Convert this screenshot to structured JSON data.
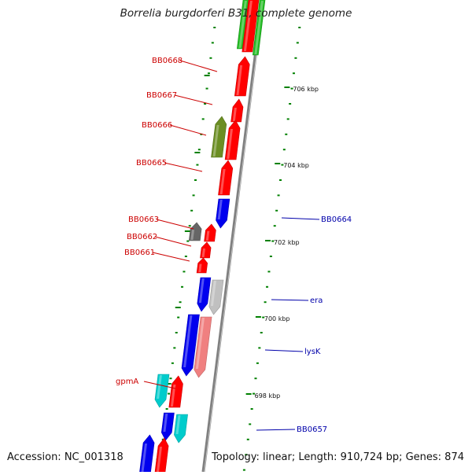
{
  "title": "Borrelia burgdorferi B31, complete genome",
  "footer": {
    "accession": "Accession: NC_001318",
    "topology": "Topology: linear; Length: 910,724 bp; Genes: 874"
  },
  "colors": {
    "backbone": "#808080",
    "ticks": "#008000",
    "forward_label": "#cc0000",
    "reverse_label": "#0000aa",
    "red": "#ff0000",
    "blue": "#0000ee",
    "green": "#22bb22",
    "olive": "#6b8e23",
    "gray": "#666666",
    "light_gray": "#c0c0c0",
    "cyan": "#00cccc",
    "pink": "#f08080"
  },
  "scale_labels": [
    "706 kbp",
    "704 kbp",
    "702 kbp",
    "700 kbp",
    "698 kbp"
  ],
  "gene_labels": {
    "forward": [
      "BB0668",
      "BB0667",
      "BB0666",
      "BB0665",
      "BB0663",
      "BB0662",
      "BB0661",
      "gpmA"
    ],
    "reverse": [
      "BB0664",
      "era",
      "lysK",
      "BB0657"
    ]
  }
}
